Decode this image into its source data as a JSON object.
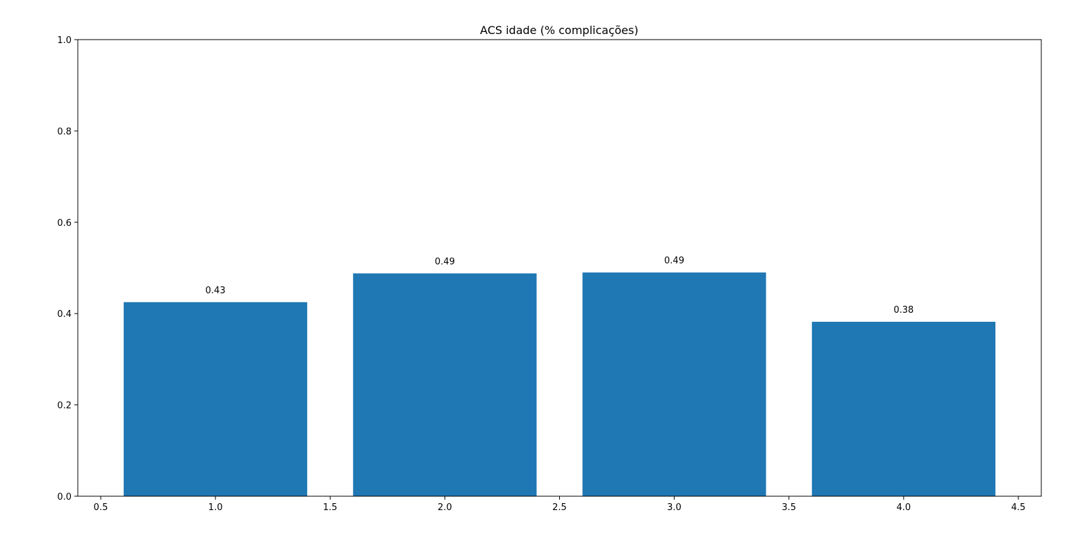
{
  "chart_data": {
    "type": "bar",
    "title": "ACS idade (% complicações)",
    "xlabel": "",
    "ylabel": "",
    "x": [
      1.0,
      2.0,
      3.0,
      4.0
    ],
    "values": [
      0.425,
      0.488,
      0.49,
      0.382
    ],
    "data_labels": [
      "0.43",
      "0.49",
      "0.49",
      "0.38"
    ],
    "bar_width": 0.8,
    "bar_color": "#1f77b4",
    "xlim": [
      0.4,
      4.6
    ],
    "ylim": [
      0.0,
      1.0
    ],
    "x_ticks": [
      0.5,
      1.0,
      1.5,
      2.0,
      2.5,
      3.0,
      3.5,
      4.0,
      4.5
    ],
    "x_tick_labels": [
      "0.5",
      "1.0",
      "1.5",
      "2.0",
      "2.5",
      "3.0",
      "3.5",
      "4.0",
      "4.5"
    ],
    "y_ticks": [
      0.0,
      0.2,
      0.4,
      0.6,
      0.8,
      1.0
    ],
    "y_tick_labels": [
      "0.0",
      "0.2",
      "0.4",
      "0.6",
      "0.8",
      "1.0"
    ],
    "grid": false,
    "legend": false
  }
}
